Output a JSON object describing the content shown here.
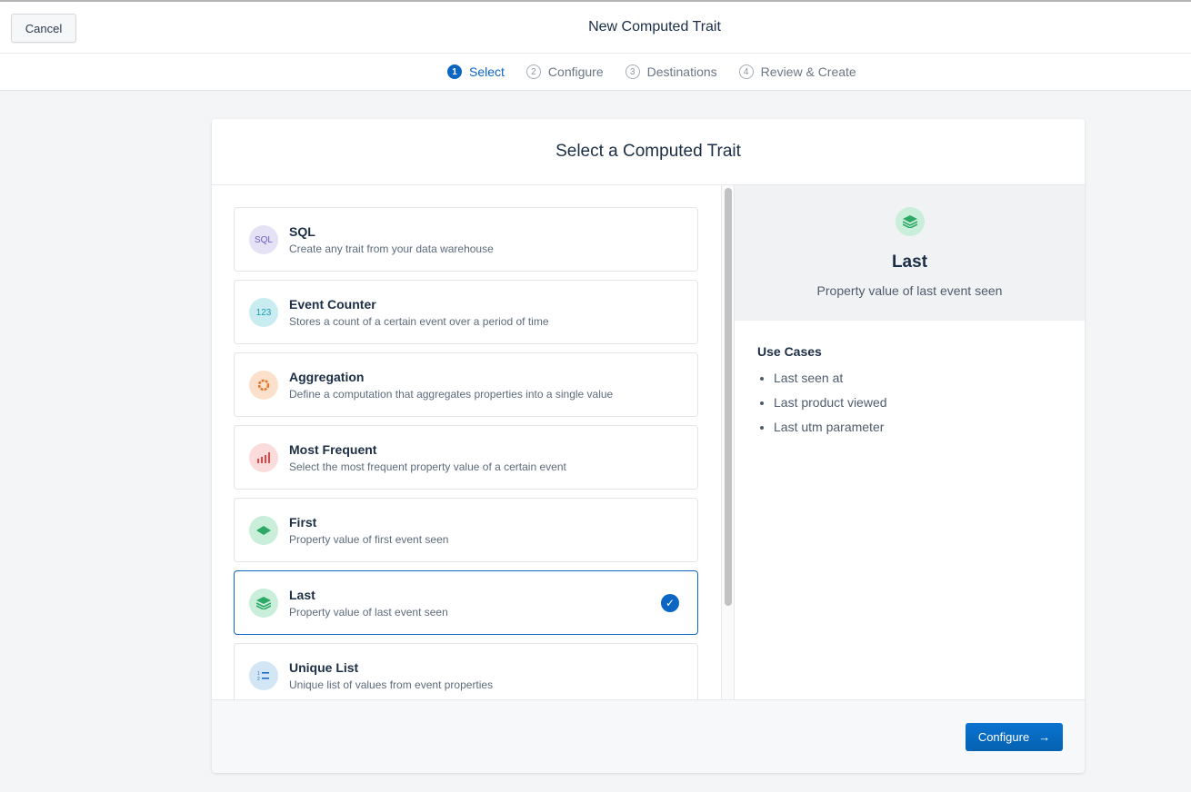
{
  "header": {
    "cancel_label": "Cancel",
    "title": "New Computed Trait"
  },
  "steps": [
    {
      "num": "1",
      "label": "Select",
      "active": true
    },
    {
      "num": "2",
      "label": "Configure"
    },
    {
      "num": "3",
      "label": "Destinations"
    },
    {
      "num": "4",
      "label": "Review & Create"
    }
  ],
  "card": {
    "title": "Select a Computed Trait"
  },
  "items": [
    {
      "name": "SQL",
      "desc": "Create any trait from your data warehouse",
      "icon": "sql-icon",
      "icon_text": "SQL"
    },
    {
      "name": "Event Counter",
      "desc": "Stores a count of a certain event over a period of time",
      "icon": "counter-icon",
      "icon_text": "123"
    },
    {
      "name": "Aggregation",
      "desc": "Define a computation that aggregates properties into a single value",
      "icon": "aggregation-icon"
    },
    {
      "name": "Most Frequent",
      "desc": "Select the most frequent property value of a certain event",
      "icon": "bar-chart-icon"
    },
    {
      "name": "First",
      "desc": "Property value of first event seen",
      "icon": "layer-icon"
    },
    {
      "name": "Last",
      "desc": "Property value of last event seen",
      "icon": "layers-icon",
      "selected": true
    },
    {
      "name": "Unique List",
      "desc": "Unique list of values from event properties",
      "icon": "ordered-list-icon"
    }
  ],
  "detail": {
    "name": "Last",
    "desc": "Property value of last event seen",
    "use_cases_title": "Use Cases",
    "use_cases": [
      "Last seen at",
      "Last product viewed",
      "Last utm parameter"
    ]
  },
  "footer": {
    "configure_label": "Configure"
  },
  "colors": {
    "accent": "#0b66c3"
  }
}
